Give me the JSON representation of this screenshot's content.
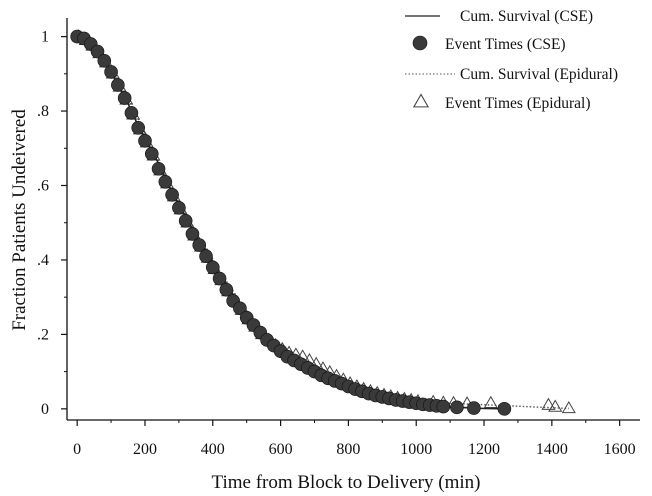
{
  "chart_data": {
    "type": "scatter",
    "title": "",
    "xlabel": "Time from Block to Delivery (min)",
    "ylabel": "Fraction Patients Undeivered",
    "xlim": [
      -30,
      1660
    ],
    "ylim": [
      -0.03,
      1.05
    ],
    "x_ticks": [
      0,
      200,
      400,
      600,
      800,
      1000,
      1200,
      1400,
      1600
    ],
    "x_tick_labels": [
      "0",
      "200",
      "400",
      "600",
      "800",
      "1000",
      "1200",
      "1400",
      "1600"
    ],
    "y_ticks": [
      0,
      0.2,
      0.4,
      0.6,
      0.8,
      1
    ],
    "y_tick_labels": [
      "0",
      ".2",
      ".4",
      ".6",
      ".8",
      "1"
    ],
    "grid": false,
    "legend_position": "top-right",
    "series": [
      {
        "name": "Cum. Survival (CSE)",
        "kind": "line",
        "style": "solid",
        "color": "#222222",
        "x": [
          0,
          30,
          60,
          90,
          120,
          150,
          180,
          210,
          240,
          270,
          300,
          330,
          360,
          390,
          420,
          450,
          480,
          510,
          540,
          570,
          600,
          630,
          660,
          700,
          750,
          800,
          850,
          900,
          950,
          1000,
          1050,
          1100,
          1150,
          1200,
          1260
        ],
        "y": [
          1.0,
          0.99,
          0.96,
          0.92,
          0.87,
          0.82,
          0.76,
          0.71,
          0.66,
          0.6,
          0.55,
          0.5,
          0.45,
          0.41,
          0.36,
          0.32,
          0.28,
          0.24,
          0.21,
          0.18,
          0.155,
          0.13,
          0.115,
          0.095,
          0.075,
          0.055,
          0.045,
          0.035,
          0.025,
          0.015,
          0.01,
          0.005,
          0.003,
          0.001,
          0
        ]
      },
      {
        "name": "Event Times (CSE)",
        "kind": "scatter",
        "marker": "circle",
        "color": "#3a3a3a",
        "x": [
          0,
          20,
          40,
          60,
          80,
          100,
          120,
          140,
          160,
          180,
          200,
          220,
          240,
          260,
          280,
          300,
          320,
          340,
          360,
          380,
          400,
          420,
          440,
          460,
          480,
          500,
          520,
          540,
          560,
          580,
          600,
          620,
          640,
          660,
          680,
          700,
          720,
          740,
          760,
          780,
          800,
          820,
          840,
          860,
          880,
          900,
          920,
          940,
          960,
          980,
          1000,
          1020,
          1040,
          1060,
          1080,
          1120,
          1170,
          1260
        ],
        "y": [
          1.0,
          0.995,
          0.98,
          0.96,
          0.935,
          0.905,
          0.87,
          0.835,
          0.795,
          0.755,
          0.72,
          0.685,
          0.645,
          0.61,
          0.575,
          0.54,
          0.505,
          0.47,
          0.44,
          0.41,
          0.38,
          0.35,
          0.32,
          0.29,
          0.27,
          0.245,
          0.225,
          0.205,
          0.185,
          0.17,
          0.155,
          0.14,
          0.13,
          0.12,
          0.11,
          0.1,
          0.09,
          0.082,
          0.075,
          0.068,
          0.06,
          0.053,
          0.047,
          0.041,
          0.036,
          0.032,
          0.028,
          0.024,
          0.021,
          0.018,
          0.015,
          0.012,
          0.01,
          0.008,
          0.006,
          0.004,
          0.002,
          0
        ]
      },
      {
        "name": "Cum. Survival (Epidural)",
        "kind": "line",
        "style": "dotted",
        "color": "#555555",
        "x": [
          0,
          30,
          60,
          90,
          120,
          150,
          180,
          210,
          240,
          270,
          300,
          330,
          360,
          390,
          420,
          450,
          480,
          510,
          540,
          570,
          600,
          630,
          660,
          700,
          750,
          800,
          850,
          900,
          950,
          1000,
          1050,
          1100,
          1150,
          1200,
          1250,
          1300,
          1350,
          1400,
          1450
        ],
        "y": [
          1.0,
          0.99,
          0.965,
          0.93,
          0.885,
          0.835,
          0.78,
          0.72,
          0.67,
          0.61,
          0.56,
          0.51,
          0.46,
          0.42,
          0.37,
          0.33,
          0.29,
          0.25,
          0.22,
          0.19,
          0.165,
          0.145,
          0.13,
          0.11,
          0.085,
          0.065,
          0.05,
          0.04,
          0.03,
          0.022,
          0.018,
          0.015,
          0.013,
          0.011,
          0.009,
          0.007,
          0.005,
          0.003,
          0.001
        ]
      },
      {
        "name": "Event Times (Epidural)",
        "kind": "scatter",
        "marker": "triangle-open",
        "color": "#444444",
        "x": [
          5,
          25,
          45,
          65,
          85,
          105,
          125,
          145,
          165,
          185,
          205,
          225,
          245,
          265,
          285,
          305,
          325,
          345,
          365,
          385,
          405,
          425,
          445,
          465,
          485,
          505,
          525,
          545,
          565,
          585,
          605,
          625,
          645,
          665,
          685,
          705,
          725,
          745,
          765,
          785,
          805,
          825,
          845,
          865,
          885,
          905,
          925,
          945,
          965,
          985,
          1005,
          1050,
          1080,
          1110,
          1150,
          1220,
          1390,
          1410,
          1450
        ],
        "y": [
          1.0,
          0.99,
          0.975,
          0.955,
          0.93,
          0.9,
          0.865,
          0.83,
          0.79,
          0.75,
          0.715,
          0.68,
          0.64,
          0.605,
          0.57,
          0.535,
          0.5,
          0.465,
          0.435,
          0.405,
          0.375,
          0.345,
          0.315,
          0.29,
          0.265,
          0.24,
          0.22,
          0.2,
          0.185,
          0.17,
          0.16,
          0.15,
          0.145,
          0.14,
          0.13,
          0.12,
          0.108,
          0.098,
          0.088,
          0.078,
          0.068,
          0.06,
          0.053,
          0.047,
          0.042,
          0.037,
          0.033,
          0.029,
          0.026,
          0.023,
          0.02,
          0.018,
          0.016,
          0.015,
          0.014,
          0.015,
          0.01,
          0.005,
          0.001
        ]
      }
    ]
  }
}
